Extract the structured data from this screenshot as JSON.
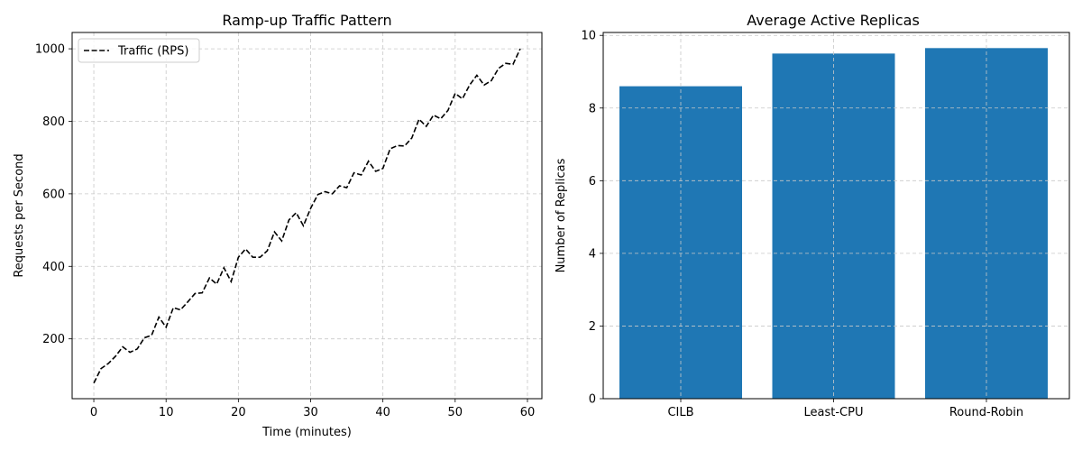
{
  "chart_data": [
    {
      "type": "line",
      "title": "Ramp-up Traffic Pattern",
      "xlabel": "Time (minutes)",
      "ylabel": "Requests per Second",
      "xlim": [
        -3,
        62
      ],
      "ylim": [
        35,
        1045
      ],
      "xticks": [
        0,
        10,
        20,
        30,
        40,
        50,
        60
      ],
      "yticks": [
        200,
        400,
        600,
        800,
        1000
      ],
      "grid": true,
      "legend": "top-left",
      "series": [
        {
          "name": "Traffic (RPS)",
          "color": "#000000",
          "style": "dashed",
          "x": [
            0,
            1,
            2,
            3,
            4,
            5,
            6,
            7,
            8,
            9,
            10,
            11,
            12,
            13,
            14,
            15,
            16,
            17,
            18,
            19,
            20,
            21,
            22,
            23,
            24,
            25,
            26,
            27,
            28,
            29,
            30,
            31,
            32,
            33,
            34,
            35,
            36,
            37,
            38,
            39,
            40,
            41,
            42,
            43,
            44,
            45,
            46,
            47,
            48,
            49,
            50,
            51,
            52,
            53,
            54,
            55,
            56,
            57,
            58,
            59
          ],
          "values": [
            78,
            118,
            132,
            152,
            178,
            163,
            172,
            203,
            210,
            260,
            232,
            286,
            280,
            302,
            325,
            327,
            368,
            351,
            396,
            358,
            425,
            448,
            425,
            425,
            443,
            495,
            470,
            528,
            548,
            512,
            560,
            598,
            606,
            600,
            622,
            617,
            658,
            652,
            690,
            662,
            670,
            724,
            733,
            732,
            754,
            806,
            786,
            817,
            807,
            830,
            877,
            862,
            900,
            927,
            900,
            912,
            946,
            960,
            957,
            1000
          ]
        }
      ]
    },
    {
      "type": "bar",
      "title": "Average Active Replicas",
      "xlabel": "",
      "ylabel": "Number of Replicas",
      "categories": [
        "CILB",
        "Least-CPU",
        "Round-Robin"
      ],
      "values": [
        8.6,
        9.5,
        9.65
      ],
      "ylim": [
        0,
        10.08
      ],
      "yticks": [
        0,
        2,
        4,
        6,
        8,
        10
      ],
      "grid": true,
      "color": "#1f77b4"
    }
  ]
}
